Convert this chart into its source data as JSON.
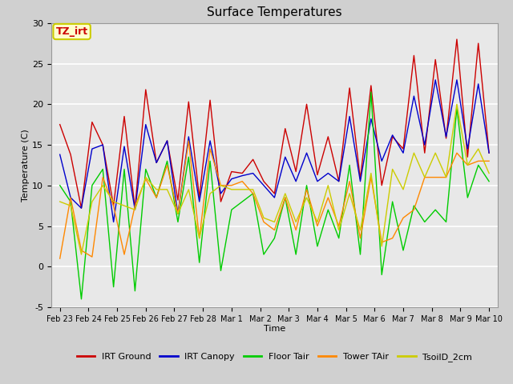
{
  "title": "Surface Temperatures",
  "xlabel": "Time",
  "ylabel": "Temperature (C)",
  "ylim": [
    -5,
    30
  ],
  "yticks": [
    -5,
    0,
    5,
    10,
    15,
    20,
    25,
    30
  ],
  "xtick_labels": [
    "Feb 23",
    "Feb 24",
    "Feb 25",
    "Feb 26",
    "Feb 27",
    "Feb 28",
    "Mar 1",
    "Mar 2",
    "Mar 3",
    "Mar 4",
    "Mar 5",
    "Mar 6",
    "Mar 7",
    "Mar 8",
    "Mar 9",
    "Mar 10"
  ],
  "legend_entries": [
    {
      "label": "IRT Ground",
      "color": "#cc0000"
    },
    {
      "label": "IRT Canopy",
      "color": "#0000cc"
    },
    {
      "label": "Floor Tair",
      "color": "#00cc00"
    },
    {
      "label": "Tower TAir",
      "color": "#ff8800"
    },
    {
      "label": "TsoilD_2cm",
      "color": "#cccc00"
    }
  ],
  "annotation": {
    "text": "TZ_irt",
    "color": "#cc0000",
    "bg": "#ffffcc",
    "border": "#cccc00"
  },
  "fig_bg": "#d0d0d0",
  "plot_bg": "#e8e8e8",
  "grid_color": "#ffffff",
  "series": {
    "irt_ground": [
      17.5,
      13.8,
      7.2,
      17.8,
      15.0,
      7.5,
      18.5,
      7.2,
      21.8,
      12.8,
      15.5,
      8.2,
      20.3,
      8.5,
      20.5,
      8.0,
      11.7,
      11.5,
      13.2,
      10.5,
      9.0,
      17.0,
      11.7,
      20.0,
      11.3,
      16.0,
      10.5,
      22.0,
      10.8,
      22.3,
      10.0,
      16.0,
      14.5,
      26.0,
      14.0,
      25.5,
      15.8,
      28.0,
      13.5,
      27.5,
      14.0
    ],
    "irt_canopy": [
      13.8,
      8.5,
      7.2,
      14.5,
      15.0,
      5.5,
      14.8,
      7.0,
      17.5,
      12.8,
      15.5,
      6.5,
      16.0,
      8.0,
      15.5,
      9.0,
      10.8,
      11.2,
      11.5,
      10.0,
      8.5,
      13.5,
      10.5,
      14.0,
      10.5,
      11.5,
      10.5,
      18.5,
      10.5,
      18.2,
      13.0,
      16.2,
      14.0,
      21.0,
      15.0,
      23.0,
      16.0,
      23.0,
      14.5,
      22.5,
      14.0
    ],
    "floor_tair": [
      10.0,
      8.0,
      -4.0,
      10.0,
      12.0,
      -2.5,
      12.0,
      -3.0,
      12.0,
      8.5,
      13.0,
      5.5,
      13.5,
      0.5,
      13.0,
      -0.5,
      7.0,
      8.0,
      9.0,
      1.5,
      3.5,
      8.5,
      1.5,
      10.0,
      2.5,
      7.0,
      3.5,
      12.5,
      1.5,
      21.5,
      -1.0,
      8.0,
      2.0,
      7.5,
      5.5,
      7.0,
      5.5,
      19.5,
      8.5,
      12.5,
      10.5
    ],
    "tower_tair": [
      1.0,
      8.5,
      2.0,
      1.2,
      11.0,
      7.5,
      1.5,
      7.5,
      10.8,
      8.5,
      12.5,
      6.5,
      15.5,
      3.5,
      14.5,
      10.0,
      10.0,
      10.5,
      9.0,
      5.5,
      4.5,
      8.5,
      4.5,
      9.5,
      5.0,
      8.5,
      5.0,
      10.5,
      3.5,
      11.0,
      3.0,
      3.5,
      6.0,
      7.0,
      11.0,
      11.0,
      11.0,
      14.0,
      12.5,
      13.0,
      13.0
    ],
    "tsoil_2cm": [
      8.0,
      7.5,
      1.5,
      8.0,
      10.0,
      8.0,
      7.5,
      7.0,
      11.0,
      9.5,
      9.5,
      6.5,
      9.5,
      3.5,
      9.0,
      10.0,
      9.5,
      9.5,
      9.5,
      6.0,
      5.5,
      9.0,
      5.5,
      8.5,
      5.5,
      10.0,
      4.5,
      9.0,
      4.5,
      11.5,
      2.5,
      12.0,
      9.5,
      14.0,
      11.0,
      14.0,
      11.0,
      20.0,
      12.5,
      14.5,
      11.5
    ]
  }
}
